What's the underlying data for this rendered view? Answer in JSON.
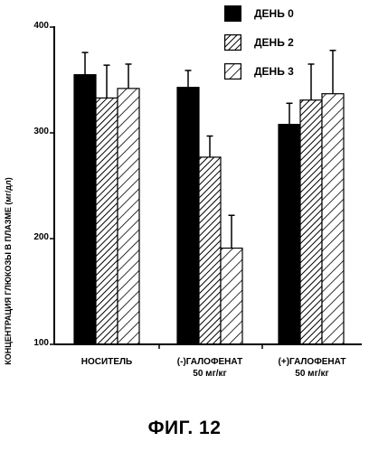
{
  "chart_data": {
    "type": "bar",
    "title": "",
    "ylabel": "КОНЦЕНТРАЦИЯ ГЛЮКОЗЫ В ПЛАЗМЕ (мг/дл)",
    "xlabel": "",
    "ylim": [
      100,
      400
    ],
    "yticks": [
      100,
      200,
      300,
      400
    ],
    "grid": false,
    "legend_position": "top-right",
    "categories": [
      {
        "line1": "НОСИТЕЛЬ",
        "line2": ""
      },
      {
        "line1": "(-)ГАЛОФЕНАТ",
        "line2": "50 мг/кг"
      },
      {
        "line1": "(+)ГАЛОФЕНАТ",
        "line2": "50 мг/кг"
      }
    ],
    "series": [
      {
        "name": "ДЕНЬ 0",
        "pattern": "solid",
        "values": [
          355,
          343,
          308
        ],
        "errors": [
          21,
          16,
          20
        ]
      },
      {
        "name": "ДЕНЬ 2",
        "pattern": "dense-hatch",
        "values": [
          333,
          277,
          331
        ],
        "errors": [
          31,
          20,
          34
        ]
      },
      {
        "name": "ДЕНЬ 3",
        "pattern": "sparse-hatch",
        "values": [
          342,
          191,
          337
        ],
        "errors": [
          23,
          31,
          41
        ]
      }
    ]
  },
  "figure_caption": "ФИГ. 12"
}
